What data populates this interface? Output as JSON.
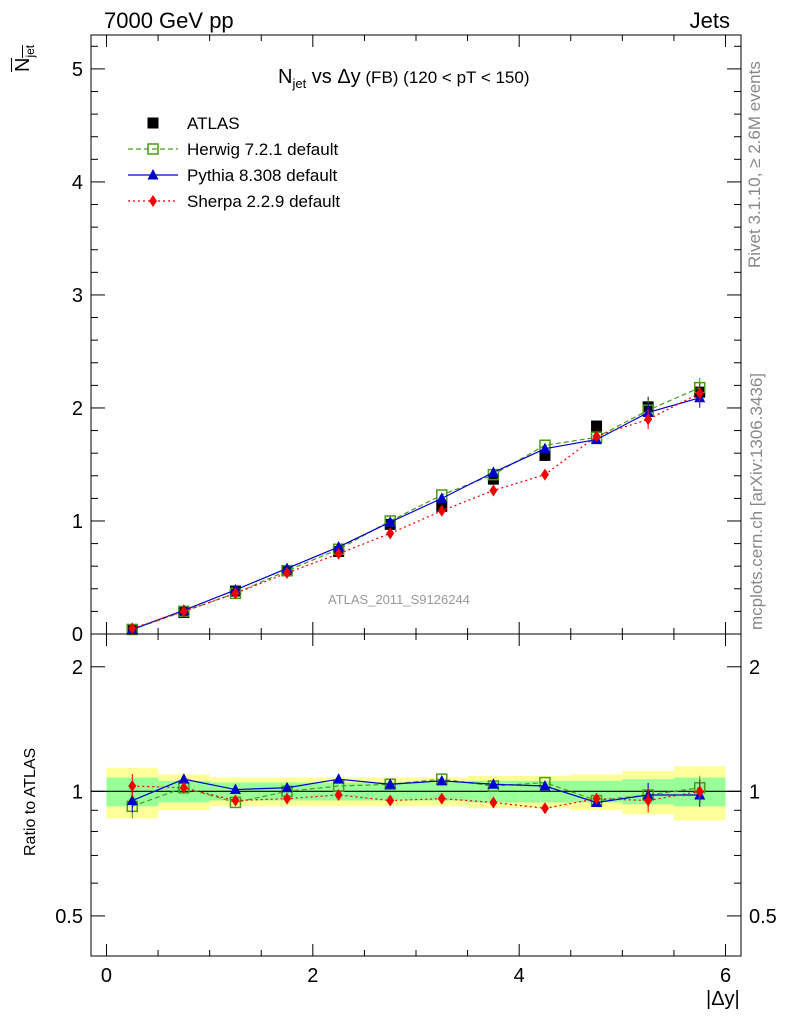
{
  "header": {
    "left": "7000 GeV pp",
    "right": "Jets"
  },
  "side_labels": {
    "rivet": "Rivet 3.1.10, ≥ 2.6M events",
    "mcplots": "mcplots.cern.ch [arXiv:1306.3436]"
  },
  "plot_title": {
    "n": "N",
    "n_sub": "jet",
    "vs": " vs ",
    "dy": "Δy",
    "fb": " (FB)",
    "range": " (120 < pT < 150)"
  },
  "y_axis_top": {
    "label_main": "N",
    "label_sub": "jet"
  },
  "y_axis_bottom": {
    "label": "Ratio to ATLAS"
  },
  "x_axis": {
    "label": "|Δy|"
  },
  "watermark": "ATLAS_2011_S9126244",
  "colors": {
    "atlas": "#000000",
    "herwig": "#4a9a1a",
    "pythia": "#0000cc",
    "sherpa": "#ee0000",
    "band_inner": "#99ff99",
    "band_outer": "#ffff99"
  },
  "chart_data": [
    {
      "type": "line",
      "panel": "main",
      "ylim": [
        0,
        5.3
      ],
      "xlim": [
        -0.15,
        6.15
      ],
      "yticks": [
        0,
        1,
        2,
        3,
        4,
        5
      ],
      "ytick_labels": [
        "0",
        "1",
        "2",
        "3",
        "4",
        "5"
      ],
      "legend_position": "top-left",
      "x": [
        0.25,
        0.75,
        1.25,
        1.75,
        2.25,
        2.75,
        3.25,
        3.75,
        4.25,
        4.75,
        5.25,
        5.75
      ],
      "series": [
        {
          "name": "ATLAS",
          "marker": "square",
          "values": [
            0.04,
            0.19,
            0.38,
            0.56,
            0.73,
            0.97,
            1.13,
            1.37,
            1.58,
            1.84,
            2.01,
            2.14
          ]
        },
        {
          "name": "Herwig 7.2.1 default",
          "marker": "open-square",
          "dash": "dashed",
          "values": [
            0.04,
            0.2,
            0.36,
            0.56,
            0.75,
            1.0,
            1.23,
            1.41,
            1.67,
            1.74,
            1.98,
            2.18
          ]
        },
        {
          "name": "Pythia 8.308 default",
          "marker": "triangle",
          "dash": "solid",
          "values": [
            0.04,
            0.21,
            0.39,
            0.58,
            0.77,
            0.99,
            1.2,
            1.43,
            1.64,
            1.72,
            1.96,
            2.09
          ]
        },
        {
          "name": "Sherpa 2.2.9 default",
          "marker": "diamond",
          "dash": "dotted",
          "values": [
            0.05,
            0.2,
            0.36,
            0.54,
            0.71,
            0.89,
            1.09,
            1.27,
            1.41,
            1.75,
            1.9,
            2.13
          ]
        }
      ]
    },
    {
      "type": "line",
      "panel": "ratio",
      "ylabel": "Ratio to ATLAS",
      "xlabel": "|Δy|",
      "ylim": [
        0.4,
        2.4
      ],
      "log_y": true,
      "xlim": [
        -0.15,
        6.15
      ],
      "yticks": [
        0.5,
        1,
        2
      ],
      "ytick_labels": [
        "0.5",
        "1",
        "2"
      ],
      "xticks": [
        0,
        2,
        4,
        6
      ],
      "xtick_labels": [
        "0",
        "2",
        "4",
        "6"
      ],
      "x": [
        0.25,
        0.75,
        1.25,
        1.75,
        2.25,
        2.75,
        3.25,
        3.75,
        4.25,
        4.75,
        5.25,
        5.75
      ],
      "bins": [
        [
          0,
          0.5
        ],
        [
          0.5,
          1.0
        ],
        [
          1.0,
          1.5
        ],
        [
          1.5,
          2.0
        ],
        [
          2.0,
          2.5
        ],
        [
          2.5,
          3.0
        ],
        [
          3.0,
          3.5
        ],
        [
          3.5,
          4.0
        ],
        [
          4.0,
          4.5
        ],
        [
          4.5,
          5.0
        ],
        [
          5.0,
          5.5
        ],
        [
          5.5,
          6.0
        ]
      ],
      "band_inner": [
        0.08,
        0.06,
        0.05,
        0.05,
        0.05,
        0.05,
        0.05,
        0.06,
        0.06,
        0.06,
        0.07,
        0.08
      ],
      "band_outer": [
        0.14,
        0.1,
        0.08,
        0.08,
        0.08,
        0.08,
        0.08,
        0.09,
        0.09,
        0.1,
        0.12,
        0.15
      ],
      "series": [
        {
          "name": "Herwig 7.2.1 default",
          "values": [
            0.92,
            1.02,
            0.94,
            1.0,
            1.03,
            1.04,
            1.07,
            1.03,
            1.05,
            0.95,
            0.98,
            1.02
          ]
        },
        {
          "name": "Pythia 8.308 default",
          "values": [
            0.95,
            1.07,
            1.01,
            1.02,
            1.07,
            1.04,
            1.06,
            1.04,
            1.03,
            0.94,
            0.98,
            0.98
          ]
        },
        {
          "name": "Sherpa 2.2.9 default",
          "values": [
            1.03,
            1.02,
            0.95,
            0.96,
            0.98,
            0.95,
            0.96,
            0.94,
            0.91,
            0.96,
            0.95,
            1.0
          ]
        }
      ]
    }
  ]
}
